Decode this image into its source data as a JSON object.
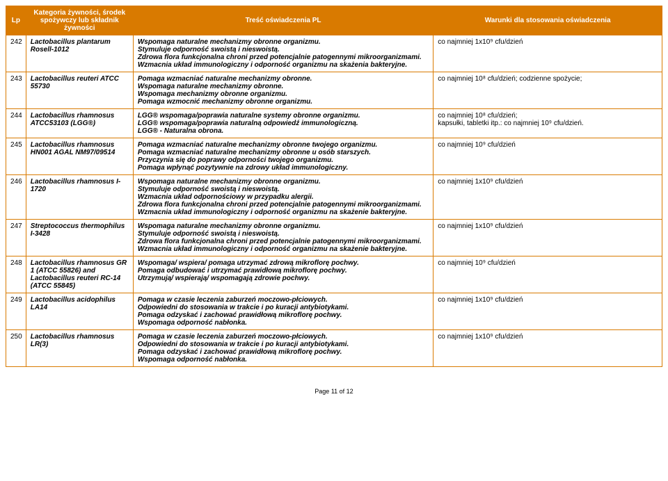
{
  "header": {
    "lp": "Lp",
    "category": "Kategoria żywności,\nśrodek spożywczy\nlub składnik\nżywności",
    "text": "Treść oświadczenia PL",
    "conditions": "Warunki dla stosowania oświadczenia"
  },
  "rows": [
    {
      "lp": "242",
      "cat": "Lactobacillus plantarum Rosell-1012",
      "text": "Wspomaga naturalne mechanizmy obronne organizmu.\nStymuluje odporność swoistą i nieswoistą.\nZdrowa flora funkcjonalna chroni przed potencjalnie patogennymi mikroorganizmami.\nWzmacnia układ immunologiczny i odporność organizmu na skażenia bakteryjne.",
      "cond": "co najmniej 1x10⁹ cfu/dzień"
    },
    {
      "lp": "243",
      "cat": "Lactobacillus reuteri ATCC 55730",
      "text": "Pomaga wzmacniać naturalne mechanizmy obronne.\nWspomaga naturalne mechanizmy obronne.\nWspomaga mechanizmy obronne organizmu.\nPomaga wzmocnić mechanizmy obronne organizmu.",
      "cond": "co najmniej 10⁸ cfu/dzień; codzienne spożycie;"
    },
    {
      "lp": "244",
      "cat": "Lactobacillus rhamnosus ATCC53103 (LGG®)",
      "text": "LGG® wspomaga/poprawia naturalne systemy obronne organizmu.\nLGG® wspomaga/poprawia naturalną odpowiedź immunologiczną.\nLGG® - Naturalna obrona.",
      "cond": "co najmniej 10⁸ cfu/dzień;\nkapsułki, tabletki itp.: co najmniej 10⁹ cfu/dzień."
    },
    {
      "lp": "245",
      "cat": "Lactobacillus rhamnosus HN001 AGAL NM97/09514",
      "text": "Pomaga wzmacniać naturalne mechanizmy obronne twojego organizmu.\nPomaga wzmacniać naturalne mechanizmy obronne u osób starszych.\nPrzyczynia się do poprawy odporności twojego organizmu.\nPomaga wpłynąć pozytywnie na zdrowy układ immunologiczny.",
      "cond": "co najmniej 10⁹ cfu/dzień"
    },
    {
      "lp": "246",
      "cat": "Lactobacillus rhamnosus I-1720",
      "text": "Wspomaga naturalne mechanizmy obronne organizmu.\nStymuluje odporność swoistą i nieswoistą.\nWzmacnia układ odpornościowy w przypadku alergii.\nZdrowa flora funkcjonalna chroni przed potencjalnie patogennymi mikroorganizmami.\nWzmacnia układ immunologiczny i odporność organizmu na skażenie bakteryjne.",
      "cond": "co najmniej 1x10⁹ cfu/dzień"
    },
    {
      "lp": "247",
      "cat": "Streptococcus thermophilus I-3428",
      "text": "Wspomaga naturalne mechanizmy obronne organizmu.\nStymuluje odporność swoistą i nieswoistą.\nZdrowa flora funkcjonalna chroni przed potencjalnie patogennymi mikroorganizmami.\nWzmacnia układ immunologiczny i odporność organizmu na skażenie bakteryjne.",
      "cond": "co najmniej 1x10⁹ cfu/dzień"
    },
    {
      "lp": "248",
      "cat": "Lactobacillus rhamnosus GR 1 (ATCC 55826) and Lactobacillus reuteri RC-14 (ATCC 55845)",
      "text": "Wspomaga/ wspiera/ pomaga utrzymać zdrową mikroflorę pochwy.\nPomaga odbudować i utrzymać prawidłową mikroflorę pochwy.\nUtrzymują/ wspierają/ wspomagają zdrowie pochwy.",
      "cond": "co najmniej 10⁹ cfu/dzień"
    },
    {
      "lp": "249",
      "cat": "Lactobacillus acidophilus LA14",
      "text": "Pomaga w czasie leczenia zaburzeń moczowo-płciowych.\nOdpowiedni do stosowania w trakcie i po kuracji antybiotykami.\nPomaga odzyskać i zachować prawidłową mikroflorę pochwy.\nWspomaga odporność nabłonka.",
      "cond": "co najmniej 1x10⁹ cfu/dzień"
    },
    {
      "lp": "250",
      "cat": "Lactobacillus rhamnosus LR(3)",
      "text": "Pomaga w czasie leczenia zaburzeń moczowo-płciowych.\nOdpowiedni do stosowania w trakcie i po kuracji antybiotykami.\nPomaga odzyskać i zachować prawidłową mikroflorę pochwy.\nWspomaga odporność nabłonka.",
      "cond": "co najmniej 1x10⁹ cfu/dzień"
    }
  ],
  "footer": "Page 11 of 12"
}
